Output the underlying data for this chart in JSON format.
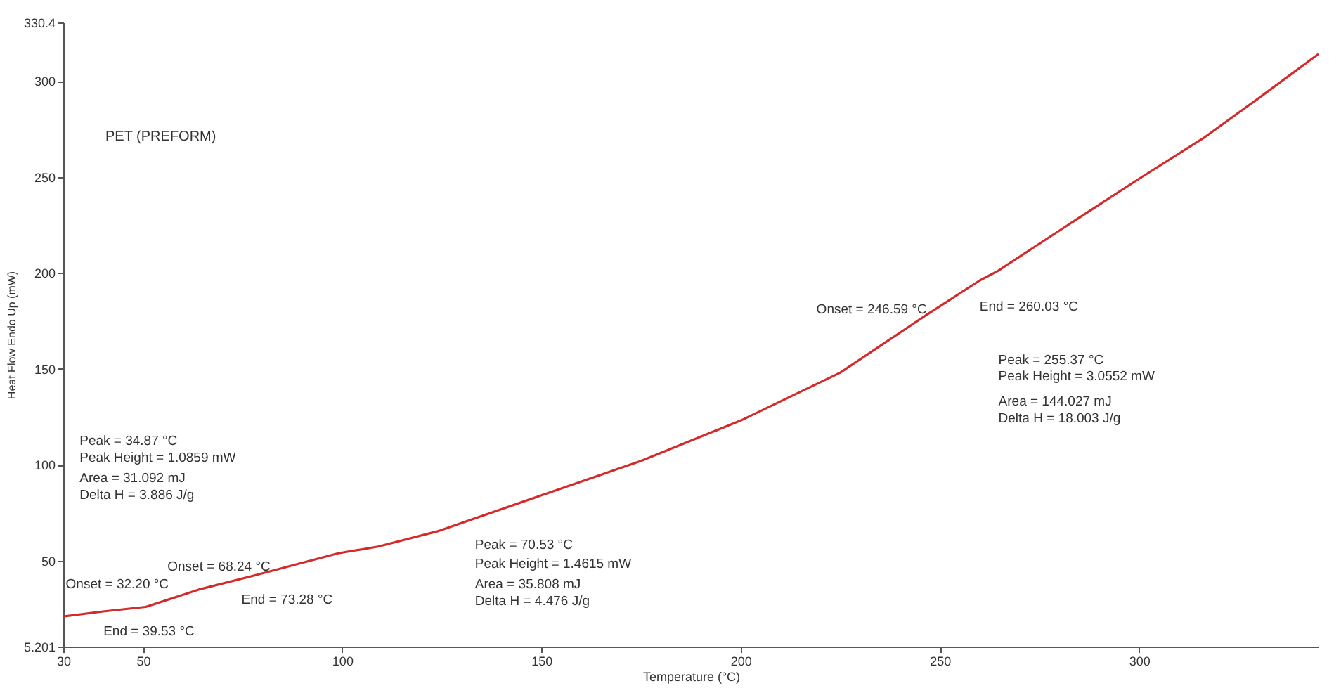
{
  "chart_data": {
    "type": "line",
    "title": "PET (PREFORM)",
    "xlabel": "Temperature (°C)",
    "ylabel": "Heat Flow Endo Up (mW)",
    "x": [
      30,
      40,
      50.7,
      64.5,
      78,
      99,
      109,
      123.8,
      150,
      175,
      200,
      225,
      246.6,
      260,
      264.5,
      280,
      300,
      316,
      330,
      345
    ],
    "series": [
      {
        "color": "#d42a2a",
        "values": [
          20.9,
          23.5,
          25.9,
          35.2,
          42.3,
          53.8,
          57.3,
          65.2,
          84,
          102,
          123,
          148,
          178,
          196,
          200.9,
          222,
          249,
          270,
          291,
          314
        ]
      }
    ],
    "xlim": [
      30,
      345
    ],
    "ylim": [
      5.201,
      330.4
    ],
    "xticks": [
      30,
      50,
      100,
      150,
      200,
      250,
      300
    ],
    "yticks": [
      {
        "value": 5.201,
        "label": "5.201"
      },
      50,
      100,
      150,
      200,
      250,
      300,
      {
        "value": 330.4,
        "label": "330.4"
      }
    ],
    "grid": false,
    "marker": "none",
    "line_style": "solid",
    "annotations": [
      "Onset = 32.20 °C",
      "End = 39.53 °C",
      "Onset = 68.24 °C",
      "End = 73.28 °C",
      "Peak = 34.87 °C",
      "Peak Height = 1.0859 mW",
      "Area = 31.092 mJ",
      "Delta H = 3.886 J/g",
      "Peak = 70.53 °C",
      "Peak Height = 1.4615 mW",
      "Area = 35.808 mJ",
      "Delta H = 4.476 J/g",
      "Onset = 246.59 °C",
      "End = 260.03 °C",
      "Peak = 255.37 °C",
      "Peak Height = 3.0552 mW",
      "Area = 144.027 mJ",
      "Delta H = 18.003 J/g"
    ]
  }
}
